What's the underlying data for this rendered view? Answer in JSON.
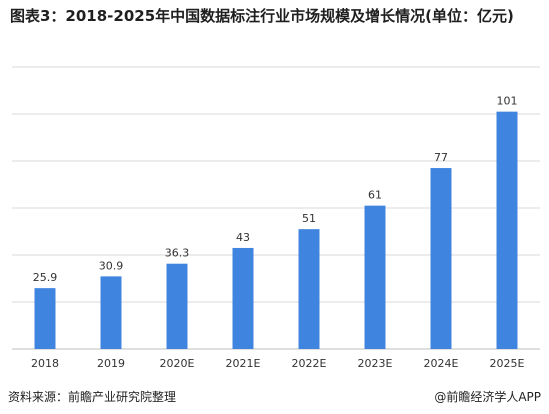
{
  "title": "图表3：2018-2025年中国数据标注行业市场规模及增长情况(单位：亿元)",
  "footer": {
    "source": "资料来源：前瞻产业研究院整理",
    "brand": "@前瞻经济学人APP"
  },
  "chart_data": {
    "type": "bar",
    "categories": [
      "2018",
      "2019",
      "2020E",
      "2021E",
      "2022E",
      "2023E",
      "2024E",
      "2025E"
    ],
    "values": [
      25.9,
      30.9,
      36.3,
      43,
      51,
      61,
      77,
      101
    ],
    "value_labels": [
      "25.9",
      "30.9",
      "36.3",
      "43",
      "51",
      "61",
      "77",
      "101"
    ],
    "title": "图表3：2018-2025年中国数据标注行业市场规模及增长情况(单位：亿元)",
    "ylim": [
      0,
      120
    ],
    "grid": true,
    "bar_color": "#3f85e0",
    "legend": "none"
  }
}
